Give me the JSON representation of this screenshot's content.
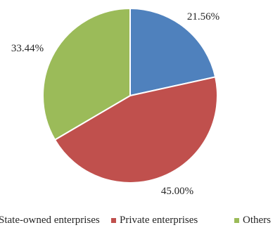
{
  "chart_data": {
    "type": "pie",
    "title": "",
    "series": [
      {
        "categories": [
          "State-owned enterprises",
          "Private enterprises",
          "Others"
        ],
        "values": [
          21.56,
          45.0,
          33.44
        ],
        "labels": [
          "21.56%",
          "45.00%",
          "33.44%"
        ],
        "colors": [
          "#4f81bd",
          "#c0504d",
          "#9bbb59"
        ]
      }
    ],
    "start_angle_deg": 0,
    "direction": "clockwise",
    "legend": {
      "placement": "bottom",
      "entries": [
        "State-owned enterprises",
        "Private enterprises",
        "Others"
      ]
    }
  }
}
